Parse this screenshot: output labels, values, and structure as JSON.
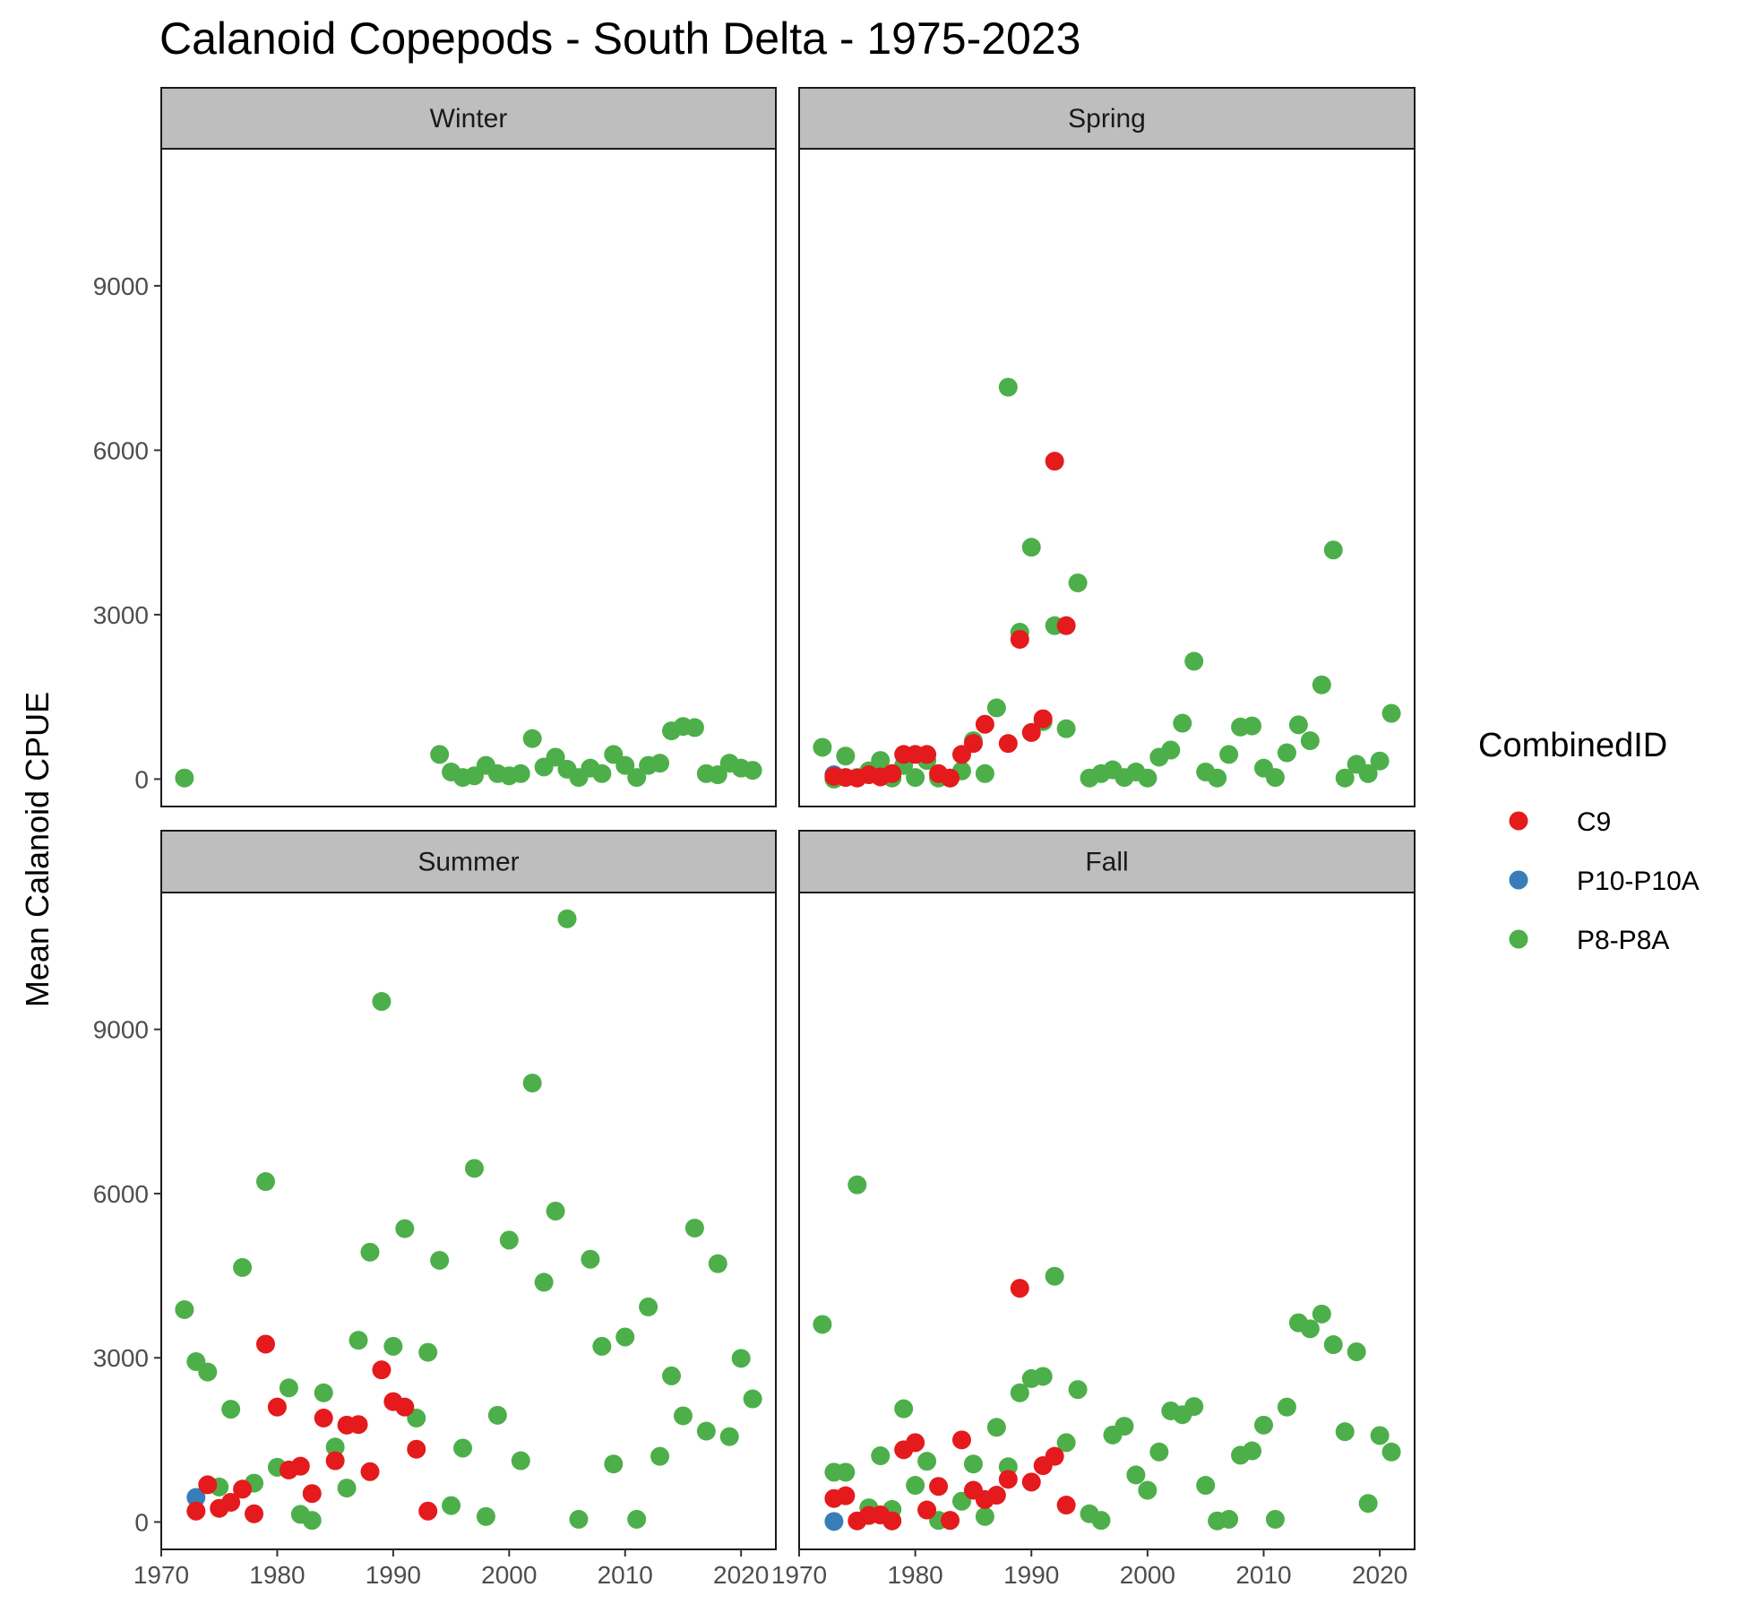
{
  "chart_data": {
    "type": "scatter",
    "title": "Calanoid Copepods - South Delta - 1975-2023",
    "ylabel": "Mean Calanoid CPUE",
    "xlabel": "",
    "ylim": [
      -500,
      11500
    ],
    "xlim": [
      1970,
      2023
    ],
    "yticks": [
      0,
      3000,
      6000,
      9000
    ],
    "xticks": [
      1970,
      1980,
      1990,
      2000,
      2010,
      2020
    ],
    "grid": false,
    "legend_position": "right",
    "legend_title": "CombinedID",
    "series": [
      {
        "name": "C9",
        "color": "#e41a1c"
      },
      {
        "name": "P10-P10A",
        "color": "#377eb8"
      },
      {
        "name": "P8-P8A",
        "color": "#4daf4a"
      }
    ],
    "facets": [
      {
        "label": "Winter",
        "points": {
          "C9": [],
          "P10-P10A": [],
          "P8-P8A": [
            [
              1972,
              20
            ],
            [
              1994,
              450
            ],
            [
              1995,
              130
            ],
            [
              1996,
              30
            ],
            [
              1997,
              60
            ],
            [
              1998,
              250
            ],
            [
              1999,
              100
            ],
            [
              2000,
              60
            ],
            [
              2001,
              100
            ],
            [
              2002,
              740
            ],
            [
              2003,
              220
            ],
            [
              2004,
              400
            ],
            [
              2005,
              180
            ],
            [
              2006,
              30
            ],
            [
              2007,
              200
            ],
            [
              2008,
              100
            ],
            [
              2009,
              450
            ],
            [
              2010,
              250
            ],
            [
              2011,
              30
            ],
            [
              2012,
              250
            ],
            [
              2013,
              290
            ],
            [
              2014,
              880
            ],
            [
              2015,
              960
            ],
            [
              2016,
              940
            ],
            [
              2017,
              100
            ],
            [
              2018,
              80
            ],
            [
              2019,
              290
            ],
            [
              2020,
              200
            ],
            [
              2021,
              160
            ]
          ]
        }
      },
      {
        "label": "Spring",
        "points": {
          "C9": [
            [
              1973,
              50
            ],
            [
              1974,
              30
            ],
            [
              1975,
              20
            ],
            [
              1976,
              80
            ],
            [
              1977,
              40
            ],
            [
              1978,
              100
            ],
            [
              1979,
              450
            ],
            [
              1980,
              450
            ],
            [
              1981,
              450
            ],
            [
              1982,
              100
            ],
            [
              1983,
              20
            ],
            [
              1984,
              450
            ],
            [
              1985,
              650
            ],
            [
              1986,
              1000
            ],
            [
              1988,
              650
            ],
            [
              1989,
              2550
            ],
            [
              1990,
              850
            ],
            [
              1991,
              1100
            ],
            [
              1992,
              5800
            ],
            [
              1993,
              2800
            ]
          ],
          "P10-P10A": [
            [
              1973,
              80
            ]
          ],
          "P8-P8A": [
            [
              1972,
              580
            ],
            [
              1973,
              0
            ],
            [
              1974,
              420
            ],
            [
              1975,
              30
            ],
            [
              1976,
              150
            ],
            [
              1977,
              340
            ],
            [
              1978,
              20
            ],
            [
              1979,
              250
            ],
            [
              1980,
              30
            ],
            [
              1981,
              340
            ],
            [
              1982,
              20
            ],
            [
              1983,
              20
            ],
            [
              1984,
              150
            ],
            [
              1985,
              700
            ],
            [
              1986,
              100
            ],
            [
              1987,
              1300
            ],
            [
              1988,
              7150
            ],
            [
              1989,
              2680
            ],
            [
              1990,
              4230
            ],
            [
              1991,
              1050
            ],
            [
              1992,
              2800
            ],
            [
              1993,
              920
            ],
            [
              1994,
              3580
            ],
            [
              1995,
              20
            ],
            [
              1996,
              100
            ],
            [
              1997,
              170
            ],
            [
              1998,
              30
            ],
            [
              1999,
              130
            ],
            [
              2000,
              20
            ],
            [
              2001,
              400
            ],
            [
              2002,
              530
            ],
            [
              2003,
              1020
            ],
            [
              2004,
              2150
            ],
            [
              2005,
              130
            ],
            [
              2006,
              20
            ],
            [
              2007,
              450
            ],
            [
              2008,
              950
            ],
            [
              2009,
              970
            ],
            [
              2010,
              200
            ],
            [
              2011,
              30
            ],
            [
              2012,
              480
            ],
            [
              2013,
              990
            ],
            [
              2014,
              700
            ],
            [
              2015,
              1720
            ],
            [
              2016,
              4180
            ],
            [
              2017,
              20
            ],
            [
              2018,
              270
            ],
            [
              2019,
              100
            ],
            [
              2020,
              330
            ],
            [
              2021,
              1200
            ]
          ]
        }
      },
      {
        "label": "Summer",
        "points": {
          "C9": [
            [
              1973,
              200
            ],
            [
              1974,
              680
            ],
            [
              1975,
              250
            ],
            [
              1976,
              360
            ],
            [
              1977,
              600
            ],
            [
              1978,
              150
            ],
            [
              1979,
              3250
            ],
            [
              1980,
              2100
            ],
            [
              1981,
              950
            ],
            [
              1982,
              1020
            ],
            [
              1983,
              520
            ],
            [
              1984,
              1900
            ],
            [
              1985,
              1120
            ],
            [
              1986,
              1770
            ],
            [
              1987,
              1780
            ],
            [
              1988,
              920
            ],
            [
              1989,
              2780
            ],
            [
              1990,
              2200
            ],
            [
              1991,
              2100
            ],
            [
              1992,
              1330
            ],
            [
              1993,
              200
            ]
          ],
          "P10-P10A": [
            [
              1973,
              450
            ]
          ],
          "P8-P8A": [
            [
              1972,
              3880
            ],
            [
              1973,
              2930
            ],
            [
              1974,
              2740
            ],
            [
              1975,
              640
            ],
            [
              1976,
              2060
            ],
            [
              1977,
              4650
            ],
            [
              1978,
              710
            ],
            [
              1979,
              6220
            ],
            [
              1980,
              1000
            ],
            [
              1981,
              2450
            ],
            [
              1982,
              140
            ],
            [
              1983,
              30
            ],
            [
              1984,
              2360
            ],
            [
              1985,
              1370
            ],
            [
              1986,
              620
            ],
            [
              1987,
              3320
            ],
            [
              1988,
              4930
            ],
            [
              1989,
              9510
            ],
            [
              1990,
              3210
            ],
            [
              1991,
              5360
            ],
            [
              1992,
              1900
            ],
            [
              1993,
              3100
            ],
            [
              1994,
              4780
            ],
            [
              1995,
              300
            ],
            [
              1996,
              1350
            ],
            [
              1997,
              6460
            ],
            [
              1998,
              100
            ],
            [
              1999,
              1950
            ],
            [
              2000,
              5150
            ],
            [
              2001,
              1120
            ],
            [
              2002,
              8020
            ],
            [
              2003,
              4380
            ],
            [
              2004,
              5680
            ],
            [
              2005,
              11020
            ],
            [
              2006,
              50
            ],
            [
              2007,
              4800
            ],
            [
              2008,
              3210
            ],
            [
              2009,
              1060
            ],
            [
              2010,
              3380
            ],
            [
              2011,
              50
            ],
            [
              2012,
              3930
            ],
            [
              2013,
              1200
            ],
            [
              2014,
              2670
            ],
            [
              2015,
              1940
            ],
            [
              2016,
              5370
            ],
            [
              2017,
              1660
            ],
            [
              2018,
              4720
            ],
            [
              2019,
              1560
            ],
            [
              2020,
              2990
            ],
            [
              2021,
              2250
            ]
          ]
        }
      },
      {
        "label": "Fall",
        "points": {
          "C9": [
            [
              1973,
              430
            ],
            [
              1974,
              480
            ],
            [
              1975,
              20
            ],
            [
              1976,
              120
            ],
            [
              1977,
              130
            ],
            [
              1978,
              20
            ],
            [
              1979,
              1320
            ],
            [
              1980,
              1450
            ],
            [
              1981,
              220
            ],
            [
              1982,
              650
            ],
            [
              1983,
              30
            ],
            [
              1984,
              1500
            ],
            [
              1985,
              580
            ],
            [
              1986,
              410
            ],
            [
              1987,
              490
            ],
            [
              1988,
              780
            ],
            [
              1989,
              4270
            ],
            [
              1990,
              730
            ],
            [
              1991,
              1030
            ],
            [
              1992,
              1200
            ],
            [
              1993,
              310
            ]
          ],
          "P10-P10A": [
            [
              1973,
              10
            ]
          ],
          "P8-P8A": [
            [
              1972,
              3610
            ],
            [
              1973,
              910
            ],
            [
              1974,
              910
            ],
            [
              1975,
              6160
            ],
            [
              1976,
              260
            ],
            [
              1977,
              1210
            ],
            [
              1978,
              230
            ],
            [
              1979,
              2070
            ],
            [
              1980,
              670
            ],
            [
              1981,
              1110
            ],
            [
              1982,
              30
            ],
            [
              1983,
              30
            ],
            [
              1984,
              380
            ],
            [
              1985,
              1060
            ],
            [
              1986,
              100
            ],
            [
              1987,
              1730
            ],
            [
              1988,
              1010
            ],
            [
              1989,
              2360
            ],
            [
              1990,
              2620
            ],
            [
              1991,
              2660
            ],
            [
              1992,
              4490
            ],
            [
              1993,
              1450
            ],
            [
              1994,
              2420
            ],
            [
              1995,
              150
            ],
            [
              1996,
              30
            ],
            [
              1997,
              1590
            ],
            [
              1998,
              1750
            ],
            [
              1999,
              860
            ],
            [
              2000,
              580
            ],
            [
              2001,
              1280
            ],
            [
              2002,
              2030
            ],
            [
              2003,
              1960
            ],
            [
              2004,
              2110
            ],
            [
              2005,
              670
            ],
            [
              2006,
              20
            ],
            [
              2007,
              50
            ],
            [
              2008,
              1220
            ],
            [
              2009,
              1300
            ],
            [
              2010,
              1770
            ],
            [
              2011,
              50
            ],
            [
              2012,
              2100
            ],
            [
              2013,
              3640
            ],
            [
              2014,
              3530
            ],
            [
              2015,
              3800
            ],
            [
              2016,
              3240
            ],
            [
              2017,
              1650
            ],
            [
              2018,
              3110
            ],
            [
              2019,
              340
            ],
            [
              2020,
              1580
            ],
            [
              2021,
              1280
            ]
          ]
        }
      }
    ]
  }
}
